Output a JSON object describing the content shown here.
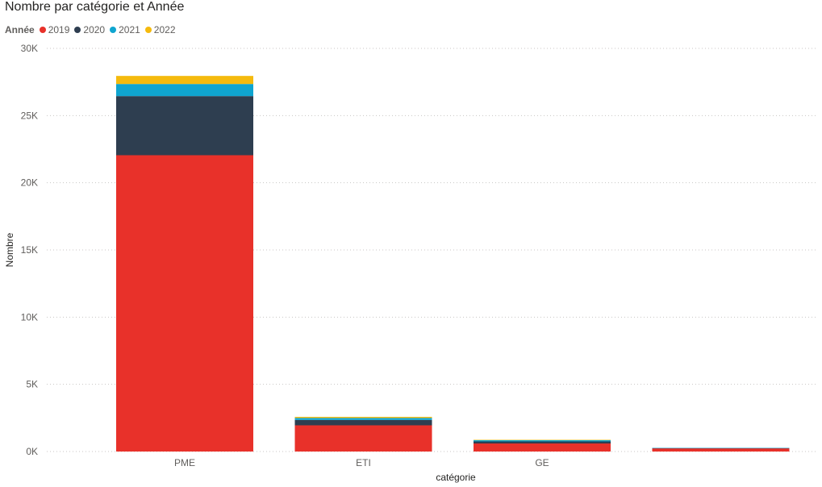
{
  "chart_data": {
    "type": "bar",
    "stacked": true,
    "title": "Nombre par catégorie et Année",
    "legend_title": "Année",
    "xlabel": "catégorie",
    "ylabel": "Nombre",
    "ylim": [
      0,
      30000
    ],
    "yticks": [
      0,
      5000,
      10000,
      15000,
      20000,
      25000,
      30000
    ],
    "ytick_labels": [
      "0K",
      "5K",
      "10K",
      "15K",
      "20K",
      "25K",
      "30K"
    ],
    "grid": true,
    "legend_position": "top-left",
    "categories": [
      "PME",
      "ETI",
      "GE",
      ""
    ],
    "series": [
      {
        "name": "2019",
        "color": "#E8312A",
        "values": [
          22050,
          1950,
          600,
          250
        ]
      },
      {
        "name": "2020",
        "color": "#2E3E50",
        "values": [
          4400,
          400,
          150,
          10
        ]
      },
      {
        "name": "2021",
        "color": "#0FA5D0",
        "values": [
          900,
          150,
          100,
          5
        ]
      },
      {
        "name": "2022",
        "color": "#F5BA0D",
        "values": [
          600,
          80,
          20,
          0
        ]
      }
    ]
  }
}
